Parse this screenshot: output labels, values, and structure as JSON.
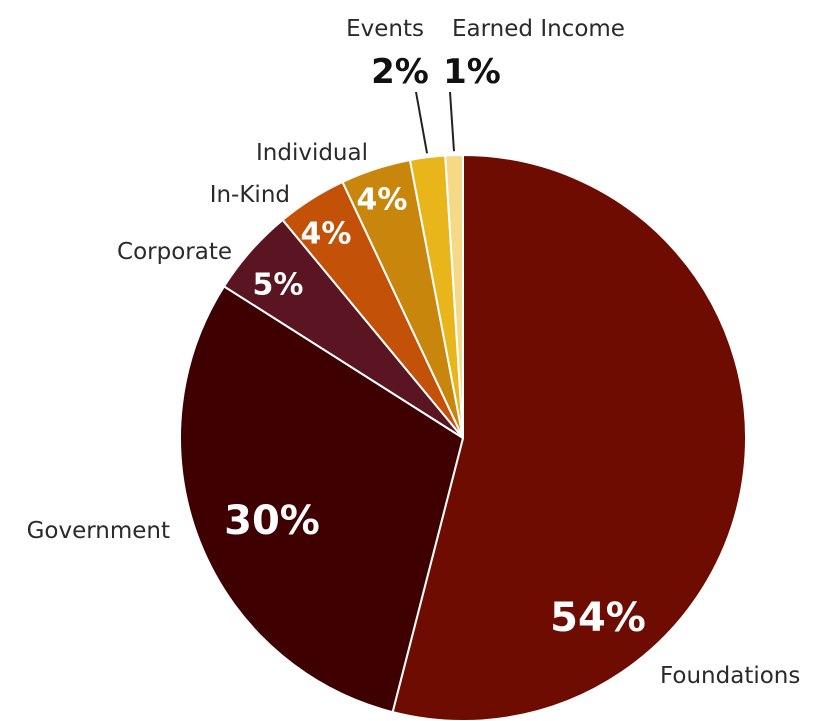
{
  "chart_data": {
    "type": "pie",
    "categories": [
      "Foundations",
      "Government",
      "Corporate",
      "In-Kind",
      "Individual",
      "Events",
      "Earned Income"
    ],
    "values": [
      54,
      30,
      5,
      4,
      4,
      2,
      1
    ],
    "value_labels": [
      "54%",
      "30%",
      "5%",
      "4%",
      "4%",
      "2%",
      "1%"
    ],
    "colors": [
      "#6e0c02",
      "#3e0000",
      "#5a1422",
      "#c45108",
      "#c9860c",
      "#e8b51b",
      "#f6d986"
    ],
    "start_angle": "12 o'clock",
    "direction": "clockwise"
  }
}
